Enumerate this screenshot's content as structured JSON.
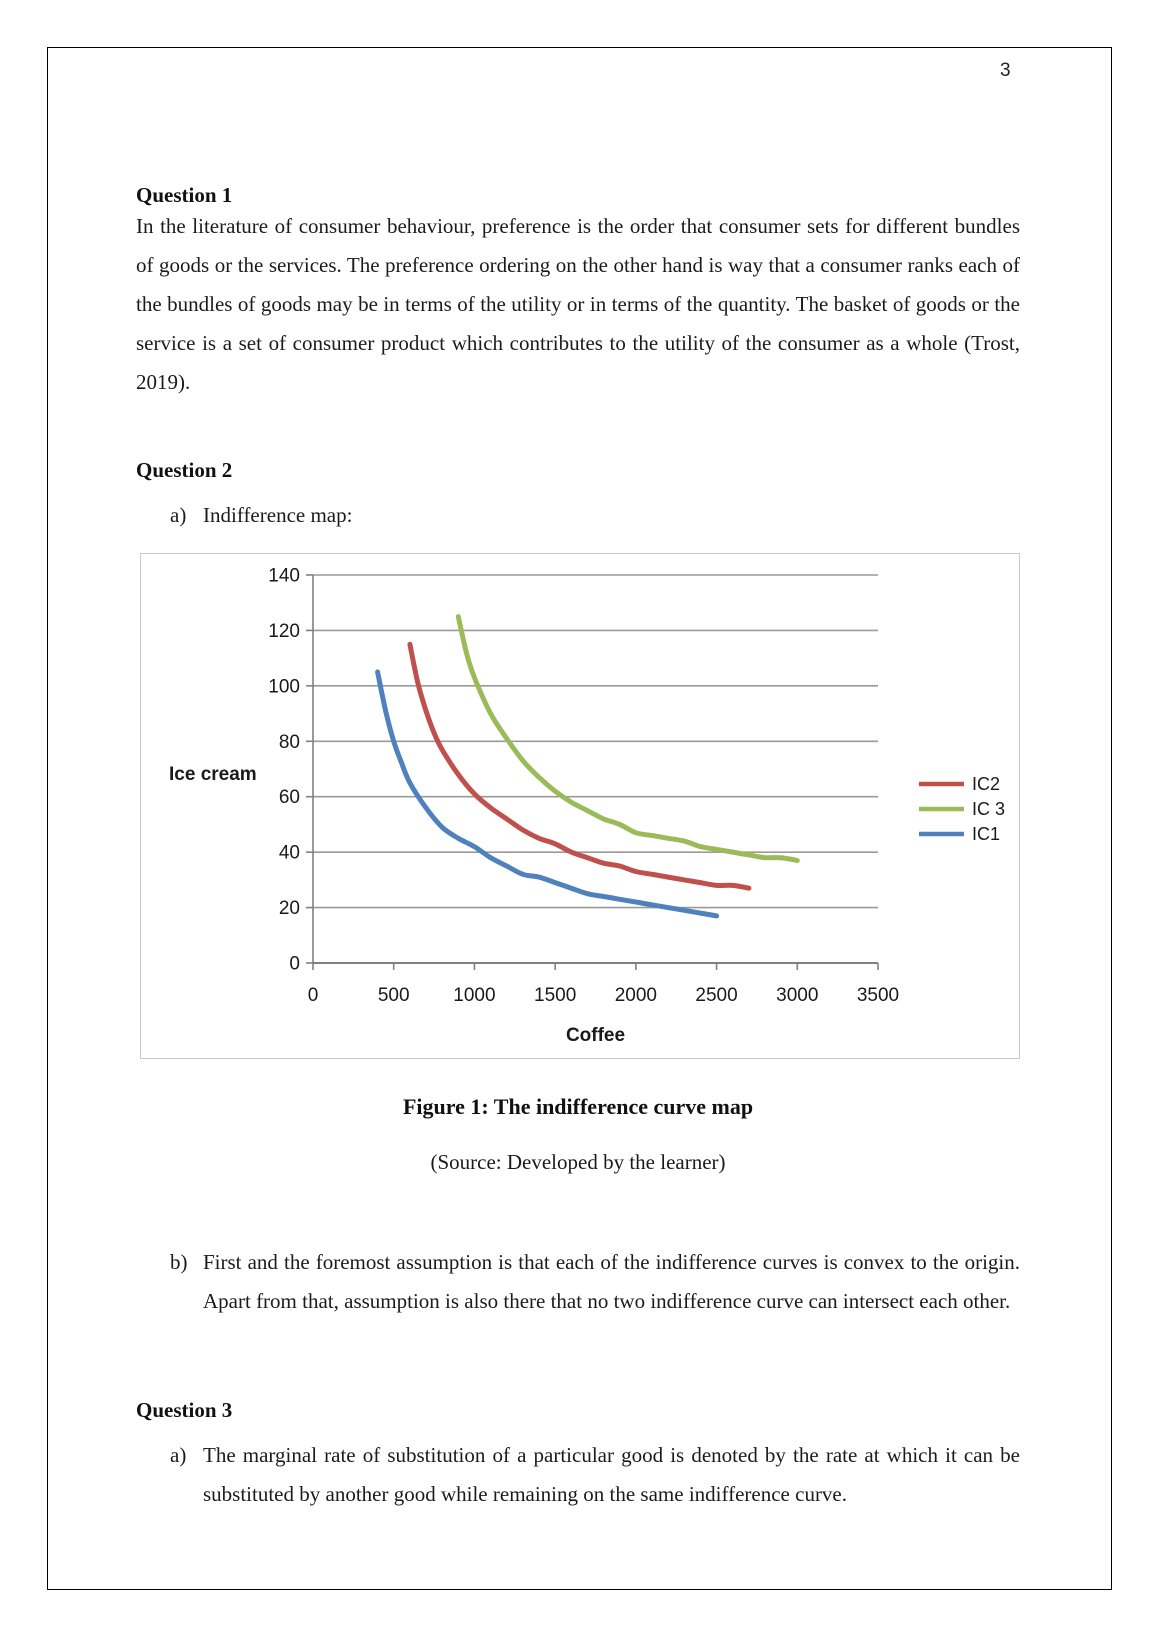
{
  "page": {
    "number": "3"
  },
  "question1": {
    "heading": "Question 1",
    "body": "In the literature of consumer behaviour, preference is the order that consumer sets for different bundles of goods or the services. The preference ordering on the other hand is way that a consumer ranks each of the bundles of goods may be in terms of the utility or in terms of the quantity. The basket of goods or the service is a set of consumer product which contributes to the utility of the consumer as a whole (Trost, 2019)."
  },
  "question2": {
    "heading": "Question 2",
    "item_a_marker": "a)",
    "item_a": "Indifference map:",
    "item_b_marker": "b)",
    "item_b": "First and the foremost assumption is that each of the indifference curves is convex to the origin. Apart from that, assumption is also there that no two indifference curve can intersect each other."
  },
  "figure": {
    "caption": "Figure 1: The indifference curve map",
    "source": "(Source: Developed by the learner)"
  },
  "question3": {
    "heading": "Question 3",
    "item_a_marker": "a)",
    "item_a": "The marginal rate of substitution of a particular good is denoted by the rate at which it can be substituted by another good while remaining on the same indifference curve."
  },
  "chart_data": {
    "type": "line",
    "title": "",
    "xlabel": "Coffee",
    "ylabel": "Ice cream",
    "xlim": [
      0,
      3500
    ],
    "ylim": [
      0,
      140
    ],
    "xticks": [
      0,
      500,
      1000,
      1500,
      2000,
      2500,
      3000,
      3500
    ],
    "yticks": [
      0,
      20,
      40,
      60,
      80,
      100,
      120,
      140
    ],
    "grid": "horizontal",
    "legend_position": "right",
    "colors": {
      "grid": "#9a9a9a",
      "axis": "#808080"
    },
    "series": [
      {
        "name": "IC2",
        "color": "#C0504D",
        "points": [
          [
            600,
            115
          ],
          [
            650,
            101
          ],
          [
            700,
            91
          ],
          [
            750,
            83
          ],
          [
            800,
            77
          ],
          [
            900,
            68
          ],
          [
            1000,
            61
          ],
          [
            1100,
            56
          ],
          [
            1200,
            52
          ],
          [
            1300,
            48
          ],
          [
            1400,
            45
          ],
          [
            1500,
            43
          ],
          [
            1600,
            40
          ],
          [
            1700,
            38
          ],
          [
            1800,
            36
          ],
          [
            1900,
            35
          ],
          [
            2000,
            33
          ],
          [
            2100,
            32
          ],
          [
            2200,
            31
          ],
          [
            2300,
            30
          ],
          [
            2400,
            29
          ],
          [
            2500,
            28
          ],
          [
            2600,
            28
          ],
          [
            2700,
            27
          ]
        ]
      },
      {
        "name": "IC 3",
        "color": "#9BBB59",
        "points": [
          [
            900,
            125
          ],
          [
            950,
            112
          ],
          [
            1000,
            103
          ],
          [
            1100,
            90
          ],
          [
            1200,
            81
          ],
          [
            1300,
            73
          ],
          [
            1400,
            67
          ],
          [
            1500,
            62
          ],
          [
            1600,
            58
          ],
          [
            1700,
            55
          ],
          [
            1800,
            52
          ],
          [
            1900,
            50
          ],
          [
            2000,
            47
          ],
          [
            2100,
            46
          ],
          [
            2200,
            45
          ],
          [
            2300,
            44
          ],
          [
            2400,
            42
          ],
          [
            2500,
            41
          ],
          [
            2600,
            40
          ],
          [
            2700,
            39
          ],
          [
            2800,
            38
          ],
          [
            2900,
            38
          ],
          [
            3000,
            37
          ]
        ]
      },
      {
        "name": "IC1",
        "color": "#4F81BD",
        "points": [
          [
            400,
            105
          ],
          [
            450,
            91
          ],
          [
            500,
            80
          ],
          [
            550,
            72
          ],
          [
            600,
            65
          ],
          [
            700,
            56
          ],
          [
            800,
            49
          ],
          [
            900,
            45
          ],
          [
            1000,
            42
          ],
          [
            1100,
            38
          ],
          [
            1200,
            35
          ],
          [
            1300,
            32
          ],
          [
            1400,
            31
          ],
          [
            1500,
            29
          ],
          [
            1600,
            27
          ],
          [
            1700,
            25
          ],
          [
            1800,
            24
          ],
          [
            1900,
            23
          ],
          [
            2000,
            22
          ],
          [
            2100,
            21
          ],
          [
            2200,
            20
          ],
          [
            2300,
            19
          ],
          [
            2400,
            18
          ],
          [
            2500,
            17
          ]
        ]
      }
    ]
  }
}
